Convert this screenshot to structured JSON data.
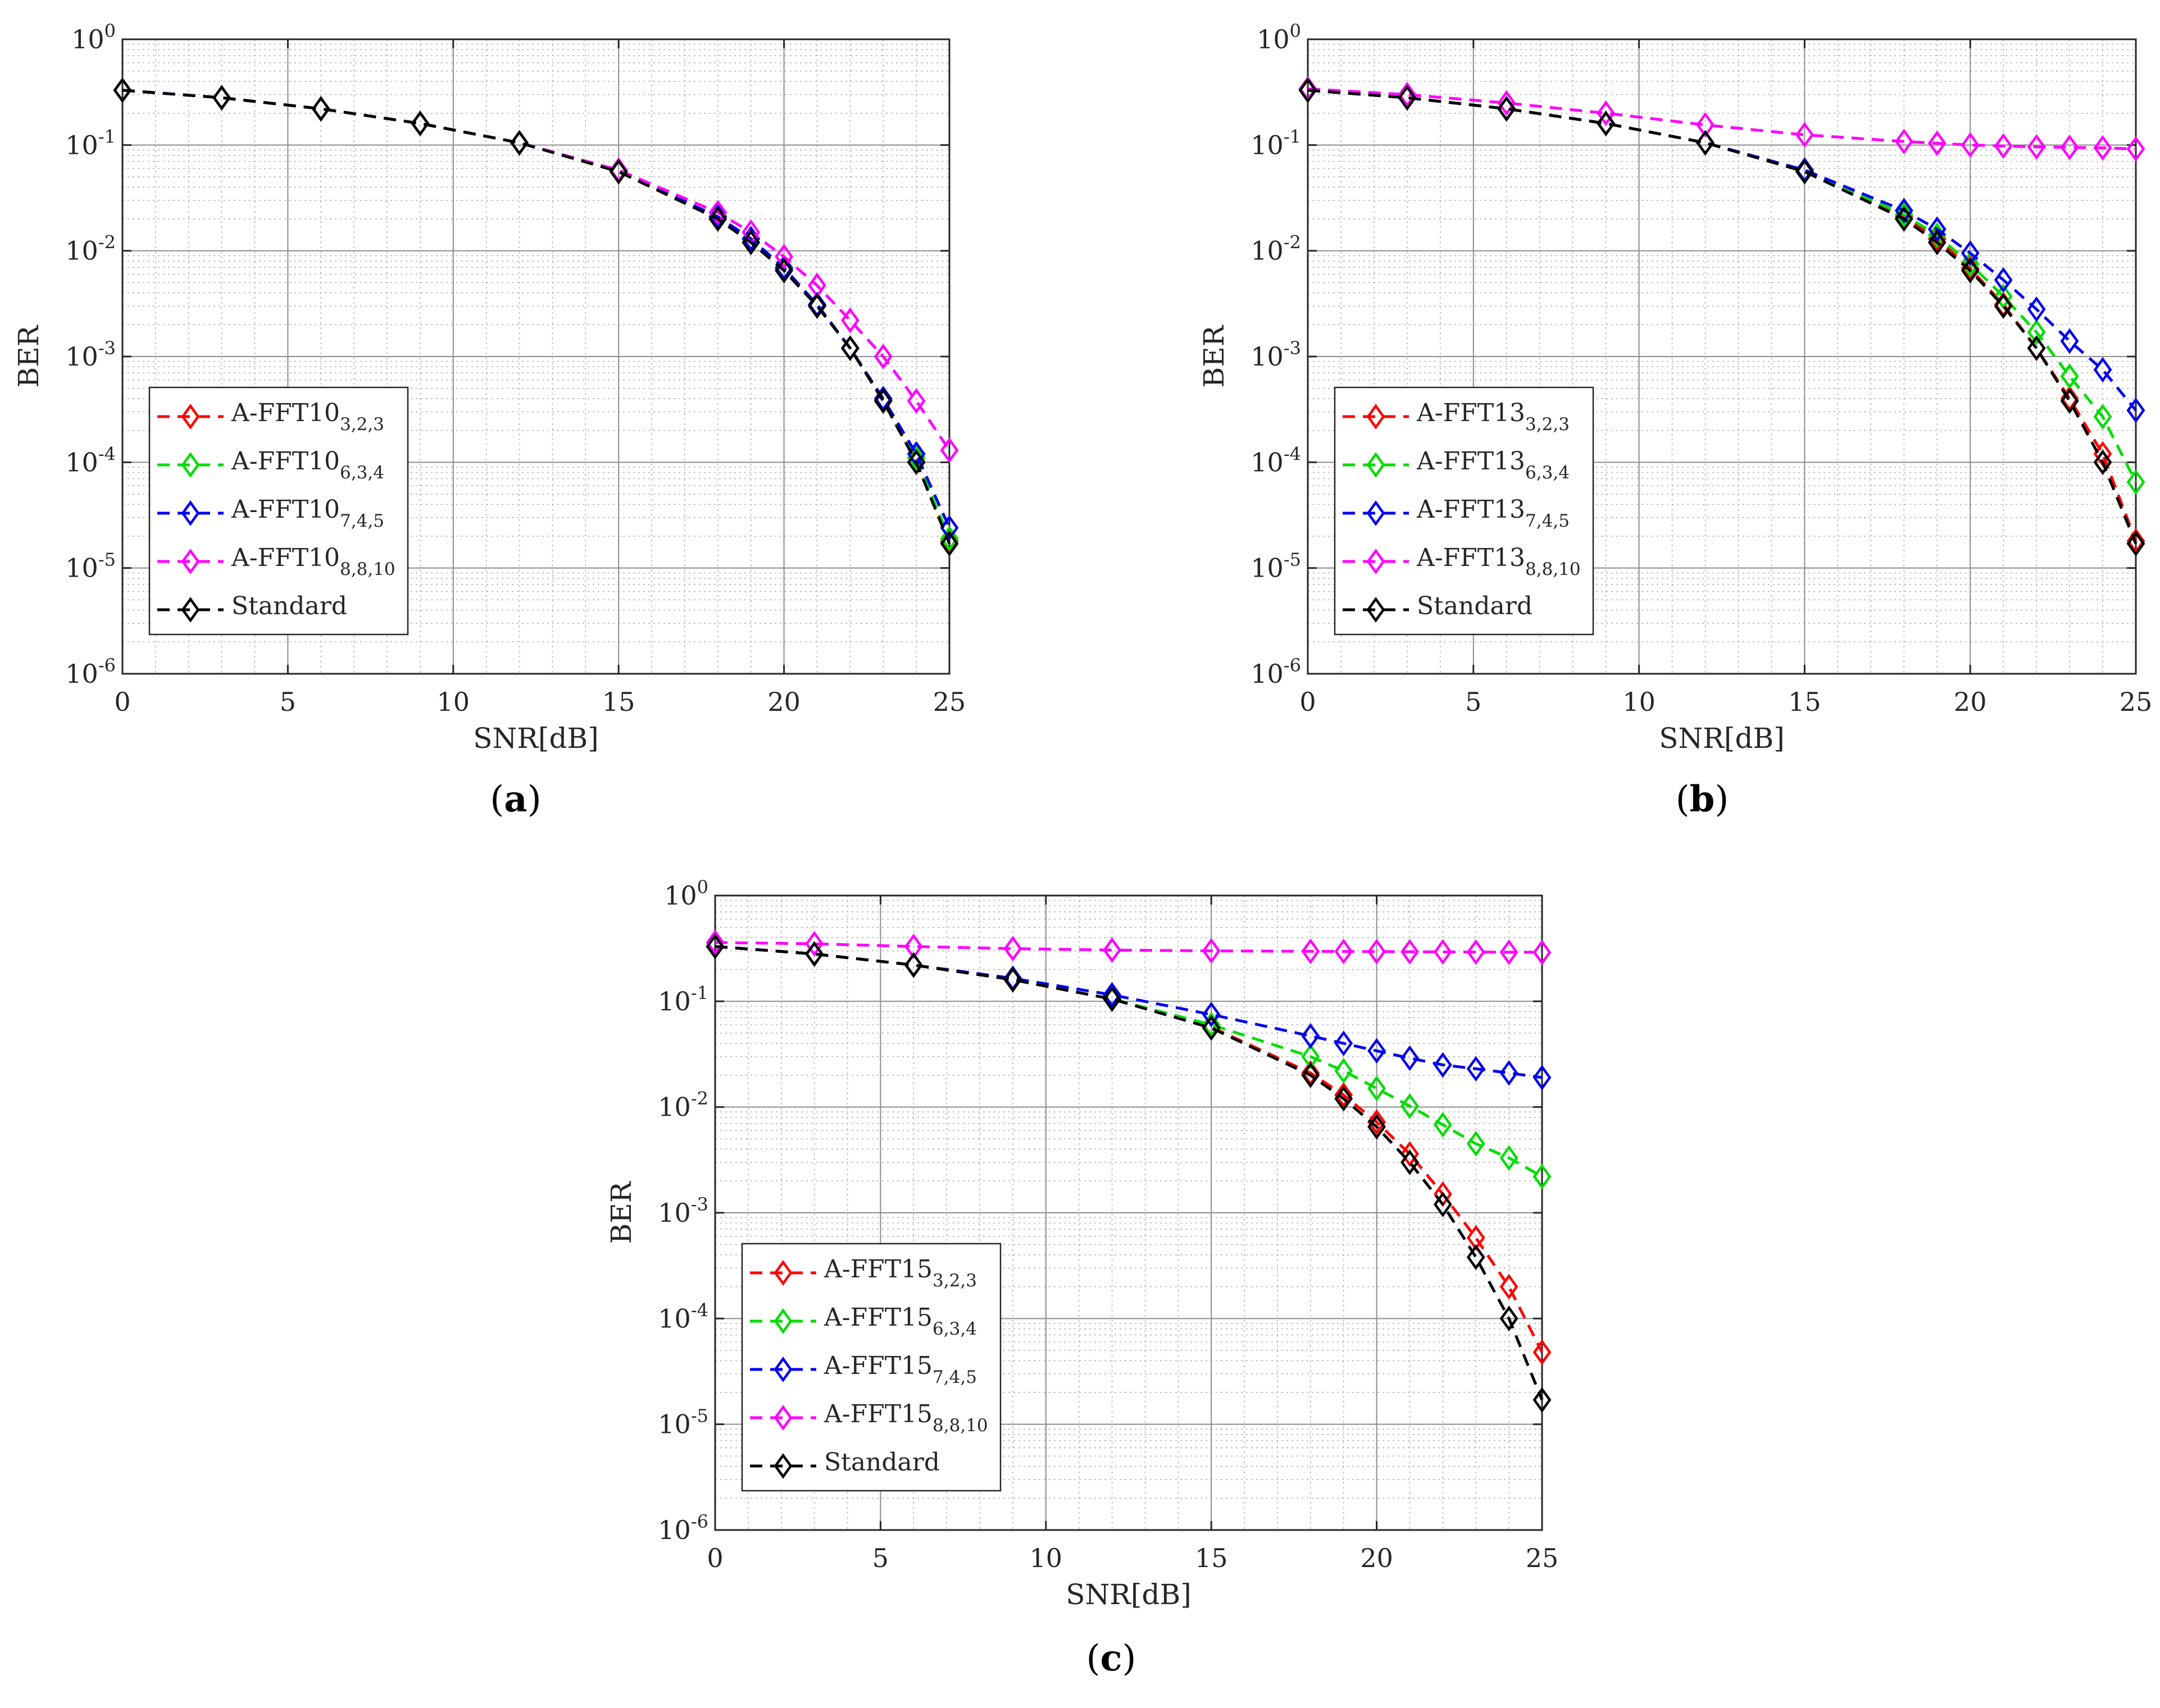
{
  "chart_data": [
    {
      "type": "line",
      "panel_label": "a",
      "xlabel": "SNR[dB]",
      "ylabel": "BER",
      "xlim": [
        0,
        25
      ],
      "ylim": [
        1e-06,
        1
      ],
      "yscale": "log",
      "x_ticks": [
        "0",
        "5",
        "10",
        "15",
        "20",
        "25"
      ],
      "y_tick_base": "10",
      "y_tick_exponents": [
        "0",
        "-1",
        "-2",
        "-3",
        "-4",
        "-5",
        "-6"
      ],
      "grid": true,
      "legend_position": "bottom-left",
      "series": [
        {
          "name": "A-FFT10",
          "subscript": "3,2,3",
          "color": "#ff0000",
          "x": [
            0,
            3,
            6,
            9,
            12,
            15,
            18,
            19,
            20,
            21,
            22,
            23,
            24,
            25
          ],
          "y": [
            0.33,
            0.28,
            0.22,
            0.16,
            0.105,
            0.057,
            0.021,
            0.013,
            0.0068,
            0.0031,
            0.0012,
            0.00038,
            0.0001,
            1.8e-05
          ]
        },
        {
          "name": "A-FFT10",
          "subscript": "6,3,4",
          "color": "#00dd00",
          "x": [
            0,
            3,
            6,
            9,
            12,
            15,
            18,
            19,
            20,
            21,
            22,
            23,
            24,
            25
          ],
          "y": [
            0.33,
            0.28,
            0.22,
            0.16,
            0.105,
            0.057,
            0.021,
            0.013,
            0.0068,
            0.0031,
            0.0012,
            0.00039,
            0.00011,
            1.9e-05
          ]
        },
        {
          "name": "A-FFT10",
          "subscript": "7,4,5",
          "color": "#0000ee",
          "x": [
            0,
            3,
            6,
            9,
            12,
            15,
            18,
            19,
            20,
            21,
            22,
            23,
            24,
            25
          ],
          "y": [
            0.33,
            0.28,
            0.22,
            0.16,
            0.105,
            0.057,
            0.021,
            0.013,
            0.0069,
            0.0031,
            0.0012,
            0.0004,
            0.00012,
            2.4e-05
          ]
        },
        {
          "name": "A-FFT10",
          "subscript": "8,8,10",
          "color": "#ff00ff",
          "x": [
            0,
            3,
            6,
            9,
            12,
            15,
            18,
            19,
            20,
            21,
            22,
            23,
            24,
            25
          ],
          "y": [
            0.33,
            0.28,
            0.22,
            0.16,
            0.105,
            0.058,
            0.023,
            0.015,
            0.0088,
            0.0047,
            0.0022,
            0.001,
            0.00038,
            0.00013
          ]
        },
        {
          "name": "Standard",
          "subscript": "",
          "color": "#000000",
          "x": [
            0,
            3,
            6,
            9,
            12,
            15,
            18,
            19,
            20,
            21,
            22,
            23,
            24,
            25
          ],
          "y": [
            0.33,
            0.28,
            0.22,
            0.16,
            0.105,
            0.056,
            0.02,
            0.012,
            0.0065,
            0.003,
            0.0012,
            0.00038,
            0.0001,
            1.7e-05
          ]
        }
      ]
    },
    {
      "type": "line",
      "panel_label": "b",
      "xlabel": "SNR[dB]",
      "ylabel": "BER",
      "xlim": [
        0,
        25
      ],
      "ylim": [
        1e-06,
        1
      ],
      "yscale": "log",
      "x_ticks": [
        "0",
        "5",
        "10",
        "15",
        "20",
        "25"
      ],
      "y_tick_base": "10",
      "y_tick_exponents": [
        "0",
        "-1",
        "-2",
        "-3",
        "-4",
        "-5",
        "-6"
      ],
      "grid": true,
      "legend_position": "bottom-left",
      "series": [
        {
          "name": "A-FFT13",
          "subscript": "3,2,3",
          "color": "#ff0000",
          "x": [
            0,
            3,
            6,
            9,
            12,
            15,
            18,
            19,
            20,
            21,
            22,
            23,
            24,
            25
          ],
          "y": [
            0.33,
            0.28,
            0.22,
            0.16,
            0.105,
            0.057,
            0.021,
            0.013,
            0.0068,
            0.0031,
            0.0012,
            0.0004,
            0.00012,
            1.8e-05
          ]
        },
        {
          "name": "A-FFT13",
          "subscript": "6,3,4",
          "color": "#00dd00",
          "x": [
            0,
            3,
            6,
            9,
            12,
            15,
            18,
            19,
            20,
            21,
            22,
            23,
            24,
            25
          ],
          "y": [
            0.33,
            0.28,
            0.22,
            0.16,
            0.105,
            0.058,
            0.022,
            0.014,
            0.0075,
            0.0037,
            0.0017,
            0.00065,
            0.00027,
            6.5e-05
          ]
        },
        {
          "name": "A-FFT13",
          "subscript": "7,4,5",
          "color": "#0000ee",
          "x": [
            0,
            3,
            6,
            9,
            12,
            15,
            18,
            19,
            20,
            21,
            22,
            23,
            24,
            25
          ],
          "y": [
            0.33,
            0.28,
            0.22,
            0.16,
            0.105,
            0.058,
            0.024,
            0.016,
            0.0095,
            0.0053,
            0.0028,
            0.0014,
            0.00075,
            0.00031
          ]
        },
        {
          "name": "A-FFT13",
          "subscript": "8,8,10",
          "color": "#ff00ff",
          "x": [
            0,
            3,
            6,
            9,
            12,
            15,
            18,
            19,
            20,
            21,
            22,
            23,
            24,
            25
          ],
          "y": [
            0.34,
            0.3,
            0.25,
            0.2,
            0.155,
            0.125,
            0.108,
            0.104,
            0.1,
            0.098,
            0.096,
            0.095,
            0.094,
            0.092
          ]
        },
        {
          "name": "Standard",
          "subscript": "",
          "color": "#000000",
          "x": [
            0,
            3,
            6,
            9,
            12,
            15,
            18,
            19,
            20,
            21,
            22,
            23,
            24,
            25
          ],
          "y": [
            0.33,
            0.28,
            0.22,
            0.16,
            0.105,
            0.056,
            0.02,
            0.012,
            0.0065,
            0.003,
            0.0012,
            0.00038,
            0.0001,
            1.7e-05
          ]
        }
      ]
    },
    {
      "type": "line",
      "panel_label": "c",
      "xlabel": "SNR[dB]",
      "ylabel": "BER",
      "xlim": [
        0,
        25
      ],
      "ylim": [
        1e-06,
        1
      ],
      "yscale": "log",
      "x_ticks": [
        "0",
        "5",
        "10",
        "15",
        "20",
        "25"
      ],
      "y_tick_base": "10",
      "y_tick_exponents": [
        "0",
        "-1",
        "-2",
        "-3",
        "-4",
        "-5",
        "-6"
      ],
      "grid": true,
      "legend_position": "bottom-left",
      "series": [
        {
          "name": "A-FFT15",
          "subscript": "3,2,3",
          "color": "#ff0000",
          "x": [
            0,
            3,
            6,
            9,
            12,
            15,
            18,
            19,
            20,
            21,
            22,
            23,
            24,
            25
          ],
          "y": [
            0.33,
            0.28,
            0.22,
            0.16,
            0.105,
            0.057,
            0.021,
            0.013,
            0.0072,
            0.0036,
            0.0015,
            0.00058,
            0.0002,
            4.8e-05
          ]
        },
        {
          "name": "A-FFT15",
          "subscript": "6,3,4",
          "color": "#00dd00",
          "x": [
            0,
            3,
            6,
            9,
            12,
            15,
            18,
            19,
            20,
            21,
            22,
            23,
            24,
            25
          ],
          "y": [
            0.33,
            0.28,
            0.22,
            0.16,
            0.105,
            0.06,
            0.03,
            0.022,
            0.015,
            0.0102,
            0.0068,
            0.0045,
            0.0033,
            0.0022
          ]
        },
        {
          "name": "A-FFT15",
          "subscript": "7,4,5",
          "color": "#0000ee",
          "x": [
            0,
            3,
            6,
            9,
            12,
            15,
            18,
            19,
            20,
            21,
            22,
            23,
            24,
            25
          ],
          "y": [
            0.33,
            0.28,
            0.22,
            0.165,
            0.115,
            0.075,
            0.047,
            0.04,
            0.034,
            0.029,
            0.025,
            0.023,
            0.021,
            0.019
          ]
        },
        {
          "name": "A-FFT15",
          "subscript": "8,8,10",
          "color": "#ff00ff",
          "x": [
            0,
            3,
            6,
            9,
            12,
            15,
            18,
            19,
            20,
            21,
            22,
            23,
            24,
            25
          ],
          "y": [
            0.36,
            0.35,
            0.33,
            0.315,
            0.305,
            0.3,
            0.297,
            0.296,
            0.295,
            0.294,
            0.293,
            0.292,
            0.291,
            0.29
          ]
        },
        {
          "name": "Standard",
          "subscript": "",
          "color": "#000000",
          "x": [
            0,
            3,
            6,
            9,
            12,
            15,
            18,
            19,
            20,
            21,
            22,
            23,
            24,
            25
          ],
          "y": [
            0.33,
            0.28,
            0.22,
            0.16,
            0.105,
            0.056,
            0.02,
            0.012,
            0.0065,
            0.003,
            0.0012,
            0.00038,
            0.0001,
            1.7e-05
          ]
        }
      ]
    }
  ]
}
